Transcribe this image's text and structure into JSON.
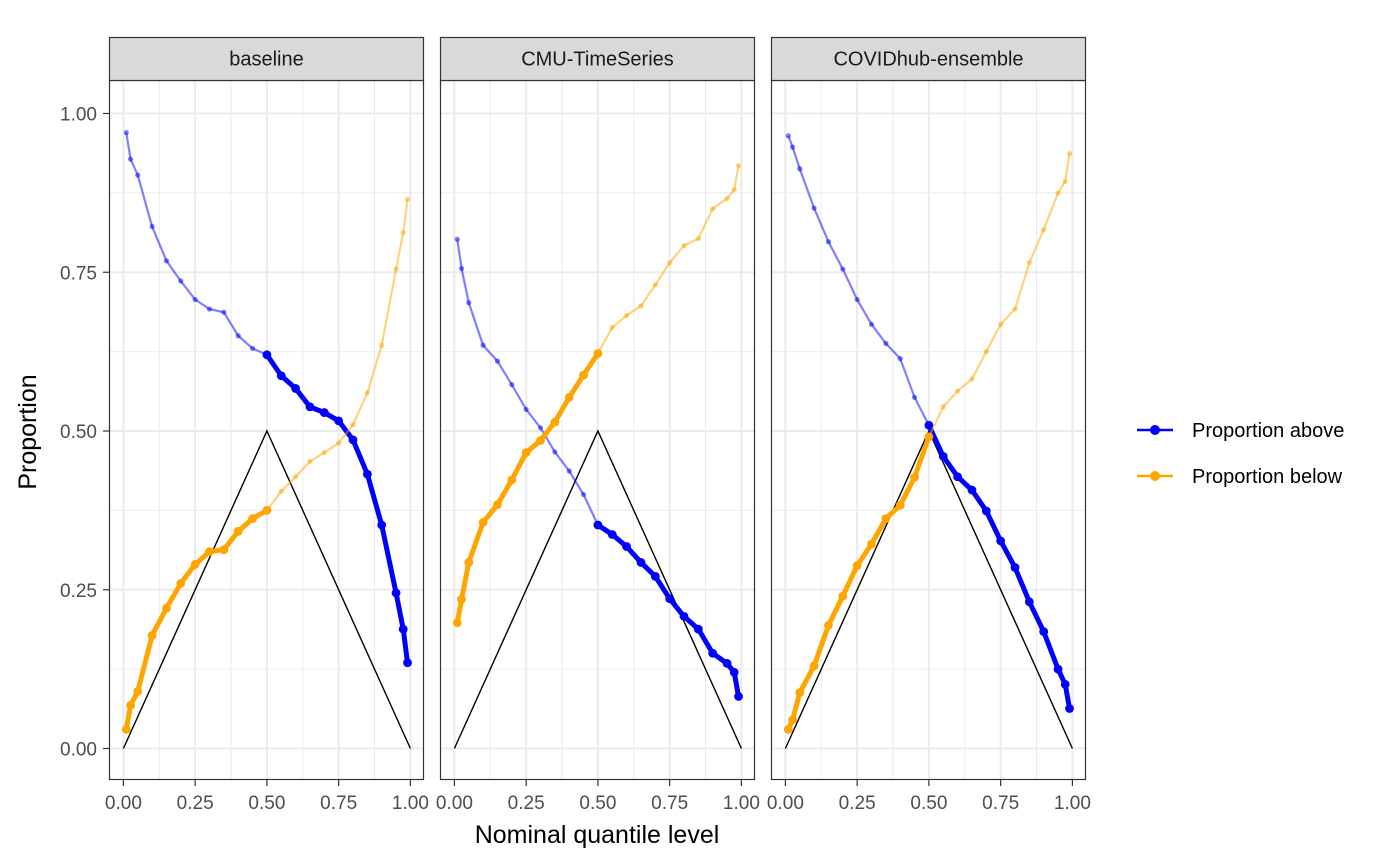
{
  "chart_data": {
    "type": "line",
    "xlabel": "Nominal quantile level",
    "ylabel": "Proportion",
    "xlim": [
      0,
      1
    ],
    "ylim": [
      0,
      1
    ],
    "x_ticks": [
      "0.00",
      "0.25",
      "0.50",
      "0.75",
      "1.00"
    ],
    "y_ticks": [
      "0.00",
      "0.25",
      "0.50",
      "0.75",
      "1.00"
    ],
    "grid": true,
    "legend_position": "right",
    "legend": [
      {
        "name": "Proportion above",
        "color": "#0000ff"
      },
      {
        "name": "Proportion below",
        "color": "#ffa500"
      }
    ],
    "quantiles": [
      0.01,
      0.025,
      0.05,
      0.1,
      0.15,
      0.2,
      0.25,
      0.3,
      0.35,
      0.4,
      0.45,
      0.5,
      0.55,
      0.6,
      0.65,
      0.7,
      0.75,
      0.8,
      0.85,
      0.9,
      0.95,
      0.975,
      0.99
    ],
    "reference_line": [
      [
        0,
        0
      ],
      [
        0.5,
        0.5
      ],
      [
        1,
        0
      ]
    ],
    "panels": [
      {
        "name": "baseline",
        "above": [
          0.97,
          0.928,
          0.903,
          0.822,
          0.768,
          0.736,
          0.707,
          0.692,
          0.687,
          0.65,
          0.63,
          0.62,
          0.587,
          0.567,
          0.538,
          0.529,
          0.516,
          0.486,
          0.432,
          0.352,
          0.245,
          0.188,
          0.135
        ],
        "below": [
          0.03,
          0.068,
          0.09,
          0.178,
          0.221,
          0.26,
          0.29,
          0.31,
          0.313,
          0.342,
          0.362,
          0.375,
          0.405,
          0.428,
          0.452,
          0.466,
          0.481,
          0.51,
          0.56,
          0.635,
          0.755,
          0.812,
          0.865
        ]
      },
      {
        "name": "CMU-TimeSeries",
        "above": [
          0.802,
          0.756,
          0.702,
          0.635,
          0.61,
          0.573,
          0.534,
          0.505,
          0.467,
          0.437,
          0.4,
          0.352,
          0.337,
          0.318,
          0.293,
          0.271,
          0.236,
          0.208,
          0.188,
          0.15,
          0.134,
          0.12,
          0.082
        ],
        "below": [
          0.198,
          0.235,
          0.293,
          0.356,
          0.384,
          0.423,
          0.466,
          0.485,
          0.514,
          0.553,
          0.588,
          0.622,
          0.663,
          0.682,
          0.697,
          0.73,
          0.765,
          0.792,
          0.803,
          0.85,
          0.866,
          0.88,
          0.918
        ]
      },
      {
        "name": "COVIDhub-ensemble",
        "above": [
          0.965,
          0.947,
          0.913,
          0.851,
          0.798,
          0.755,
          0.707,
          0.668,
          0.638,
          0.614,
          0.553,
          0.509,
          0.46,
          0.428,
          0.407,
          0.374,
          0.327,
          0.285,
          0.231,
          0.184,
          0.125,
          0.101,
          0.063
        ],
        "below": [
          0.03,
          0.045,
          0.088,
          0.13,
          0.194,
          0.24,
          0.288,
          0.322,
          0.362,
          0.383,
          0.427,
          0.491,
          0.538,
          0.563,
          0.582,
          0.625,
          0.668,
          0.692,
          0.765,
          0.817,
          0.875,
          0.893,
          0.937
        ]
      }
    ]
  }
}
